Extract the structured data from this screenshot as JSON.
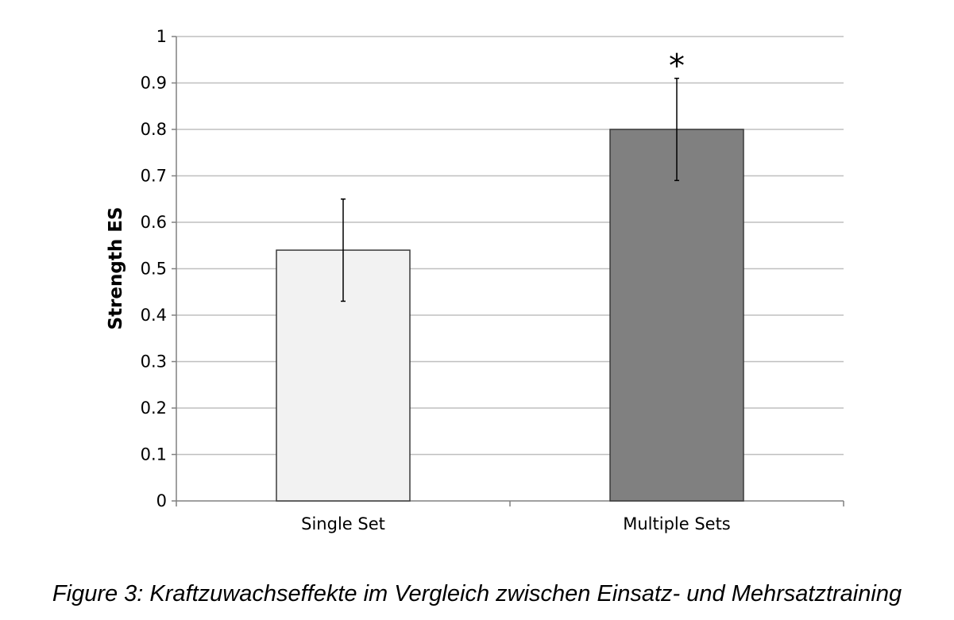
{
  "chart_data": {
    "type": "bar",
    "categories": [
      "Single Set",
      "Multiple Sets"
    ],
    "values": [
      0.54,
      0.8
    ],
    "error": [
      0.11,
      0.11
    ],
    "error_bounds": [
      [
        0.43,
        0.65
      ],
      [
        0.69,
        0.91
      ]
    ],
    "bar_colors": [
      "#f2f2f2",
      "#808080"
    ],
    "annotations": [
      {
        "category": "Multiple Sets",
        "text": "*"
      }
    ],
    "xlabel": "",
    "ylabel": "Strength ES",
    "ylim": [
      0,
      1
    ],
    "yticks": [
      "0",
      "0.1",
      "0.2",
      "0.3",
      "0.4",
      "0.5",
      "0.6",
      "0.7",
      "0.8",
      "0.9",
      "1"
    ],
    "grid": true,
    "legend": "none"
  },
  "caption": "Figure 3: Kraftzuwachseffekte im Vergleich zwischen Einsatz- und Mehrsatztraining"
}
